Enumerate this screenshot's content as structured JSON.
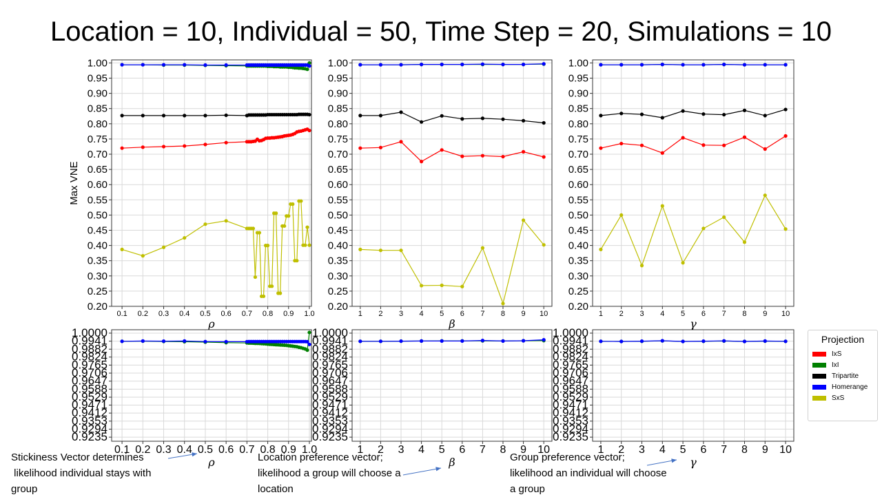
{
  "title": "Location = 10, Individual = 50, Time Step = 20, Simulations = 10",
  "notes": [
    {
      "lines": [
        "Stickiness Vector determines",
        " likelihood individual stays with",
        "group"
      ]
    },
    {
      "lines": [
        "Location preference vector;",
        "likelihood a group will choose a",
        "location"
      ]
    },
    {
      "lines": [
        "Group preference vector;",
        "likelihood an individual will choose",
        "a group"
      ]
    }
  ],
  "legend": {
    "title": "Projection",
    "items": [
      {
        "label": "IxS",
        "color": "#ff0000"
      },
      {
        "label": "IxI",
        "color": "#008000"
      },
      {
        "label": "Tripartite",
        "color": "#000000"
      },
      {
        "label": "Homerange",
        "color": "#0000ff"
      },
      {
        "label": "SxS",
        "color": "#bfbf00"
      }
    ]
  },
  "chart_data": [
    {
      "type": "line",
      "xlabel": "ρ",
      "ylabel": "Max VNE",
      "xticks": [
        "0.1",
        "0.2",
        "0.3",
        "0.4",
        "0.5",
        "0.6",
        "0.7",
        "0.8",
        "0.9",
        "1.0"
      ],
      "ylim": [
        0.2,
        1.01
      ],
      "yticks": [
        "1.00",
        "0.95",
        "0.90",
        "0.85",
        "0.80",
        "0.75",
        "0.70",
        "0.65",
        "0.60",
        "0.55",
        "0.50",
        "0.45",
        "0.40",
        "0.35",
        "0.30",
        "0.25",
        "0.20"
      ],
      "x": [
        0.1,
        0.2,
        0.3,
        0.4,
        0.5,
        0.6,
        0.7,
        0.71,
        0.72,
        0.73,
        0.74,
        0.75,
        0.76,
        0.77,
        0.78,
        0.79,
        0.8,
        0.81,
        0.82,
        0.83,
        0.84,
        0.85,
        0.86,
        0.87,
        0.88,
        0.89,
        0.9,
        0.91,
        0.92,
        0.93,
        0.94,
        0.95,
        0.96,
        0.97,
        0.98,
        0.99,
        1.0
      ],
      "series": [
        {
          "name": "IxS",
          "color": "#ff0000",
          "values": [
            0.72,
            0.723,
            0.725,
            0.727,
            0.732,
            0.738,
            0.741,
            0.741,
            0.741,
            0.742,
            0.743,
            0.749,
            0.744,
            0.745,
            0.748,
            0.752,
            0.753,
            0.753,
            0.754,
            0.754,
            0.755,
            0.756,
            0.757,
            0.758,
            0.76,
            0.761,
            0.762,
            0.763,
            0.765,
            0.768,
            0.773,
            0.775,
            0.776,
            0.778,
            0.78,
            0.782,
            0.778
          ]
        },
        {
          "name": "IxI",
          "color": "#008000",
          "values": [
            0.994,
            0.994,
            0.993,
            0.993,
            0.992,
            0.991,
            0.99,
            0.99,
            0.99,
            0.99,
            0.99,
            0.99,
            0.99,
            0.99,
            0.99,
            0.99,
            0.989,
            0.989,
            0.989,
            0.988,
            0.988,
            0.988,
            0.987,
            0.987,
            0.987,
            0.987,
            0.986,
            0.986,
            0.985,
            0.984,
            0.984,
            0.983,
            0.983,
            0.982,
            0.981,
            0.979,
            1.0
          ]
        },
        {
          "name": "Tripartite",
          "color": "#000000",
          "values": [
            0.827,
            0.827,
            0.827,
            0.827,
            0.827,
            0.828,
            0.827,
            0.829,
            0.829,
            0.829,
            0.829,
            0.829,
            0.829,
            0.829,
            0.829,
            0.829,
            0.83,
            0.83,
            0.83,
            0.83,
            0.83,
            0.83,
            0.83,
            0.83,
            0.83,
            0.83,
            0.83,
            0.83,
            0.83,
            0.83,
            0.83,
            0.831,
            0.831,
            0.831,
            0.831,
            0.831,
            0.83
          ]
        },
        {
          "name": "Homerange",
          "color": "#0000ff",
          "values": [
            0.994,
            0.994,
            0.994,
            0.994,
            0.993,
            0.993,
            0.993,
            0.993,
            0.993,
            0.993,
            0.993,
            0.993,
            0.993,
            0.993,
            0.993,
            0.993,
            0.993,
            0.993,
            0.993,
            0.993,
            0.993,
            0.993,
            0.993,
            0.993,
            0.993,
            0.993,
            0.993,
            0.993,
            0.993,
            0.993,
            0.993,
            0.993,
            0.993,
            0.993,
            0.993,
            0.993,
            0.99
          ]
        },
        {
          "name": "SxS",
          "color": "#bfbf00",
          "values": [
            0.387,
            0.366,
            0.394,
            0.425,
            0.47,
            0.481,
            0.456,
            0.456,
            0.456,
            0.456,
            0.296,
            0.442,
            0.442,
            0.233,
            0.233,
            0.4,
            0.4,
            0.266,
            0.266,
            0.506,
            0.506,
            0.243,
            0.243,
            0.464,
            0.464,
            0.497,
            0.497,
            0.536,
            0.536,
            0.35,
            0.35,
            0.546,
            0.546,
            0.401,
            0.401,
            0.46,
            0.401
          ]
        }
      ]
    },
    {
      "type": "line",
      "xlabel": "β",
      "ylabel": "",
      "xticks": [
        "1",
        "2",
        "3",
        "4",
        "5",
        "6",
        "7",
        "8",
        "9",
        "10"
      ],
      "ylim": [
        0.2,
        1.01
      ],
      "yticks": [
        "1.00",
        "0.95",
        "0.90",
        "0.85",
        "0.80",
        "0.75",
        "0.70",
        "0.65",
        "0.60",
        "0.55",
        "0.50",
        "0.45",
        "0.40",
        "0.35",
        "0.30",
        "0.25",
        "0.20"
      ],
      "x": [
        1,
        2,
        3,
        4,
        5,
        6,
        7,
        8,
        9,
        10
      ],
      "series": [
        {
          "name": "IxS",
          "color": "#ff0000",
          "values": [
            0.72,
            0.722,
            0.741,
            0.676,
            0.714,
            0.693,
            0.695,
            0.692,
            0.708,
            0.691
          ]
        },
        {
          "name": "IxI",
          "color": "#008000",
          "values": [
            0.994,
            0.994,
            0.994,
            0.995,
            0.995,
            0.995,
            0.995,
            0.995,
            0.995,
            0.996
          ]
        },
        {
          "name": "Tripartite",
          "color": "#000000",
          "values": [
            0.827,
            0.827,
            0.838,
            0.806,
            0.826,
            0.816,
            0.818,
            0.815,
            0.81,
            0.803
          ]
        },
        {
          "name": "Homerange",
          "color": "#0000ff",
          "values": [
            0.994,
            0.994,
            0.994,
            0.995,
            0.995,
            0.995,
            0.996,
            0.995,
            0.995,
            0.997
          ]
        },
        {
          "name": "SxS",
          "color": "#bfbf00",
          "values": [
            0.387,
            0.384,
            0.384,
            0.268,
            0.269,
            0.265,
            0.392,
            0.209,
            0.483,
            0.402
          ]
        }
      ]
    },
    {
      "type": "line",
      "xlabel": "γ",
      "ylabel": "",
      "xticks": [
        "1",
        "2",
        "3",
        "4",
        "5",
        "6",
        "7",
        "8",
        "9",
        "10"
      ],
      "ylim": [
        0.2,
        1.01
      ],
      "yticks": [
        "1.00",
        "0.95",
        "0.90",
        "0.85",
        "0.80",
        "0.75",
        "0.70",
        "0.65",
        "0.60",
        "0.55",
        "0.50",
        "0.45",
        "0.40",
        "0.35",
        "0.30",
        "0.25",
        "0.20"
      ],
      "x": [
        1,
        2,
        3,
        4,
        5,
        6,
        7,
        8,
        9,
        10
      ],
      "series": [
        {
          "name": "IxS",
          "color": "#ff0000",
          "values": [
            0.72,
            0.735,
            0.729,
            0.704,
            0.754,
            0.73,
            0.729,
            0.756,
            0.717,
            0.76
          ]
        },
        {
          "name": "IxI",
          "color": "#008000",
          "values": [
            0.994,
            0.994,
            0.994,
            0.995,
            0.994,
            0.994,
            0.995,
            0.994,
            0.994,
            0.994
          ]
        },
        {
          "name": "Tripartite",
          "color": "#000000",
          "values": [
            0.827,
            0.834,
            0.831,
            0.82,
            0.842,
            0.832,
            0.83,
            0.844,
            0.827,
            0.847
          ]
        },
        {
          "name": "Homerange",
          "color": "#0000ff",
          "values": [
            0.994,
            0.994,
            0.994,
            0.995,
            0.994,
            0.994,
            0.995,
            0.994,
            0.994,
            0.994
          ]
        },
        {
          "name": "SxS",
          "color": "#bfbf00",
          "values": [
            0.387,
            0.5,
            0.334,
            0.53,
            0.343,
            0.456,
            0.493,
            0.411,
            0.565,
            0.454
          ]
        }
      ]
    },
    {
      "type": "line",
      "xlabel": "ρ",
      "ylabel": "",
      "xticks": [
        "0.1",
        "0.2",
        "0.3",
        "0.4",
        "0.5",
        "0.6",
        "0.7",
        "0.8",
        "0.9",
        "1.0"
      ],
      "ylim": [
        0.9205,
        1.0025
      ],
      "yticks": [
        "1.0000",
        "0.9941",
        "0.9882",
        "0.9824",
        "0.9765",
        "0.9706",
        "0.9647",
        "0.9588",
        "0.9529",
        "0.9471",
        "0.9412",
        "0.9353",
        "0.9294",
        "0.9235"
      ],
      "x": [
        0.1,
        0.2,
        0.3,
        0.4,
        0.5,
        0.6,
        0.7,
        0.71,
        0.72,
        0.73,
        0.74,
        0.75,
        0.76,
        0.77,
        0.78,
        0.79,
        0.8,
        0.81,
        0.82,
        0.83,
        0.84,
        0.85,
        0.86,
        0.87,
        0.88,
        0.89,
        0.9,
        0.91,
        0.92,
        0.93,
        0.94,
        0.95,
        0.96,
        0.97,
        0.98,
        0.99,
        1.0
      ],
      "series": [
        {
          "name": "IxI",
          "color": "#008000",
          "values": [
            0.994,
            0.9941,
            0.9939,
            0.9937,
            0.9934,
            0.993,
            0.9928,
            0.9927,
            0.9927,
            0.9926,
            0.9925,
            0.9925,
            0.9924,
            0.9923,
            0.9922,
            0.9921,
            0.9919,
            0.9918,
            0.9917,
            0.9916,
            0.9915,
            0.9914,
            0.9913,
            0.9912,
            0.9911,
            0.991,
            0.9908,
            0.9906,
            0.9904,
            0.9902,
            0.99,
            0.9896,
            0.9893,
            0.9888,
            0.9884,
            0.9875,
            1.0005
          ]
        },
        {
          "name": "Homerange",
          "color": "#0000ff",
          "values": [
            0.994,
            0.9942,
            0.9941,
            0.9942,
            0.9938,
            0.9937,
            0.9937,
            0.9938,
            0.9938,
            0.9938,
            0.9938,
            0.9938,
            0.9938,
            0.9938,
            0.9938,
            0.9938,
            0.9938,
            0.9938,
            0.9938,
            0.9938,
            0.9938,
            0.9938,
            0.9938,
            0.9938,
            0.9938,
            0.9938,
            0.9938,
            0.9938,
            0.9938,
            0.9938,
            0.9938,
            0.9938,
            0.9938,
            0.9938,
            0.9938,
            0.9937,
            0.9917
          ]
        }
      ]
    },
    {
      "type": "line",
      "xlabel": "β",
      "ylabel": "",
      "xticks": [
        "1",
        "2",
        "3",
        "4",
        "5",
        "6",
        "7",
        "8",
        "9",
        "10"
      ],
      "ylim": [
        0.9205,
        1.0025
      ],
      "yticks": [
        "1.0000",
        "0.9941",
        "0.9882",
        "0.9824",
        "0.9765",
        "0.9706",
        "0.9647",
        "0.9588",
        "0.9529",
        "0.9471",
        "0.9412",
        "0.9353",
        "0.9294",
        "0.9235"
      ],
      "x": [
        1,
        2,
        3,
        4,
        5,
        6,
        7,
        8,
        9,
        10
      ],
      "series": [
        {
          "name": "IxI",
          "color": "#008000",
          "values": [
            0.994,
            0.994,
            0.9941,
            0.9942,
            0.9943,
            0.9943,
            0.9943,
            0.9942,
            0.9944,
            0.9945
          ]
        },
        {
          "name": "Homerange",
          "color": "#0000ff",
          "values": [
            0.994,
            0.994,
            0.9941,
            0.9942,
            0.9942,
            0.9942,
            0.9946,
            0.9942,
            0.9944,
            0.9951
          ]
        }
      ]
    },
    {
      "type": "line",
      "xlabel": "γ",
      "ylabel": "",
      "xticks": [
        "1",
        "2",
        "3",
        "4",
        "5",
        "6",
        "7",
        "8",
        "9",
        "10"
      ],
      "ylim": [
        0.9205,
        1.0025
      ],
      "yticks": [
        "1.0000",
        "0.9941",
        "0.9882",
        "0.9824",
        "0.9765",
        "0.9706",
        "0.9647",
        "0.9588",
        "0.9529",
        "0.9471",
        "0.9412",
        "0.9353",
        "0.9294",
        "0.9235"
      ],
      "x": [
        1,
        2,
        3,
        4,
        5,
        6,
        7,
        8,
        9,
        10
      ],
      "series": [
        {
          "name": "IxI",
          "color": "#008000",
          "values": [
            0.994,
            0.9939,
            0.994,
            0.9943,
            0.9939,
            0.994,
            0.9942,
            0.9939,
            0.9941,
            0.994
          ]
        },
        {
          "name": "Homerange",
          "color": "#0000ff",
          "values": [
            0.994,
            0.9939,
            0.9941,
            0.9944,
            0.9939,
            0.9941,
            0.9943,
            0.9939,
            0.9942,
            0.994
          ]
        }
      ]
    }
  ]
}
